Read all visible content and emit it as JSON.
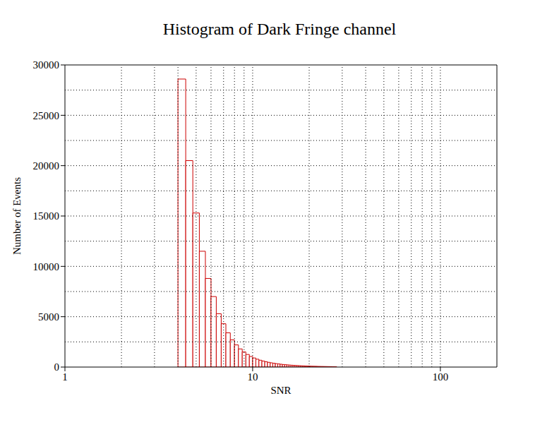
{
  "chart_data": {
    "type": "histogram",
    "title": "Histogram of Dark Fringe channel",
    "x_label": "SNR",
    "y_label": "Number of Events",
    "bins": [
      4,
      4.4,
      4.8,
      5.2,
      5.6,
      6,
      6.4,
      6.8,
      7.2,
      7.6,
      8,
      8.4,
      8.8,
      9.2,
      9.6,
      10,
      10.4,
      10.8,
      11.2,
      11.6,
      12,
      12.4,
      12.8,
      13.2,
      13.6,
      14,
      14.4,
      14.8,
      15.2,
      15.6,
      16,
      16.4,
      16.8,
      17.2,
      17.6,
      18,
      18.4,
      18.8,
      19.2,
      19.6,
      20,
      20.4,
      20.8,
      21.2,
      21.6,
      22,
      22.4,
      22.8,
      23.2,
      23.6,
      24,
      24.4,
      24.8,
      25.2,
      25.6,
      26,
      26.4,
      26.8,
      27.2,
      27.6,
      28
    ],
    "values": [
      28600,
      20500,
      15300,
      11500,
      8800,
      7000,
      5300,
      4300,
      3400,
      2700,
      2200,
      1800,
      1500,
      1250,
      1050,
      900,
      780,
      680,
      600,
      530,
      470,
      420,
      380,
      340,
      310,
      280,
      255,
      235,
      215,
      200,
      185,
      170,
      158,
      147,
      137,
      128,
      120,
      112,
      105,
      99,
      93,
      88,
      83,
      78,
      74,
      70,
      66,
      63,
      60,
      57,
      54,
      51,
      49,
      46,
      44,
      42,
      40,
      38,
      36,
      34
    ],
    "color": "#cc0000",
    "xlim": [
      1,
      200
    ],
    "ylim": [
      0,
      30000
    ],
    "xticks": [
      1,
      10,
      100
    ],
    "yticks": [
      0,
      5000,
      10000,
      15000,
      20000,
      25000,
      30000
    ],
    "log": "x",
    "grid": true
  }
}
